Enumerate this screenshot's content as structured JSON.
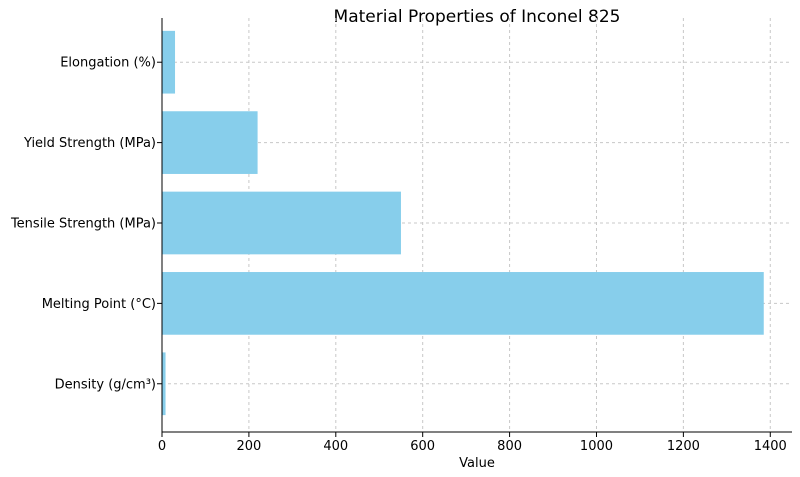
{
  "chart_data": {
    "type": "bar",
    "orientation": "horizontal",
    "title": "Material Properties of Inconel 825",
    "xlabel": "Value",
    "ylabel": "",
    "categories": [
      "Density (g/cm³)",
      "Melting Point (°C)",
      "Tensile Strength (MPa)",
      "Yield Strength (MPa)",
      "Elongation (%)"
    ],
    "values": [
      8.14,
      1385,
      550,
      220,
      30
    ],
    "xlim": [
      0,
      1450
    ],
    "xticks": [
      0,
      200,
      400,
      600,
      800,
      1000,
      1200,
      1400
    ],
    "grid": true,
    "bar_color": "#87CEEB"
  }
}
